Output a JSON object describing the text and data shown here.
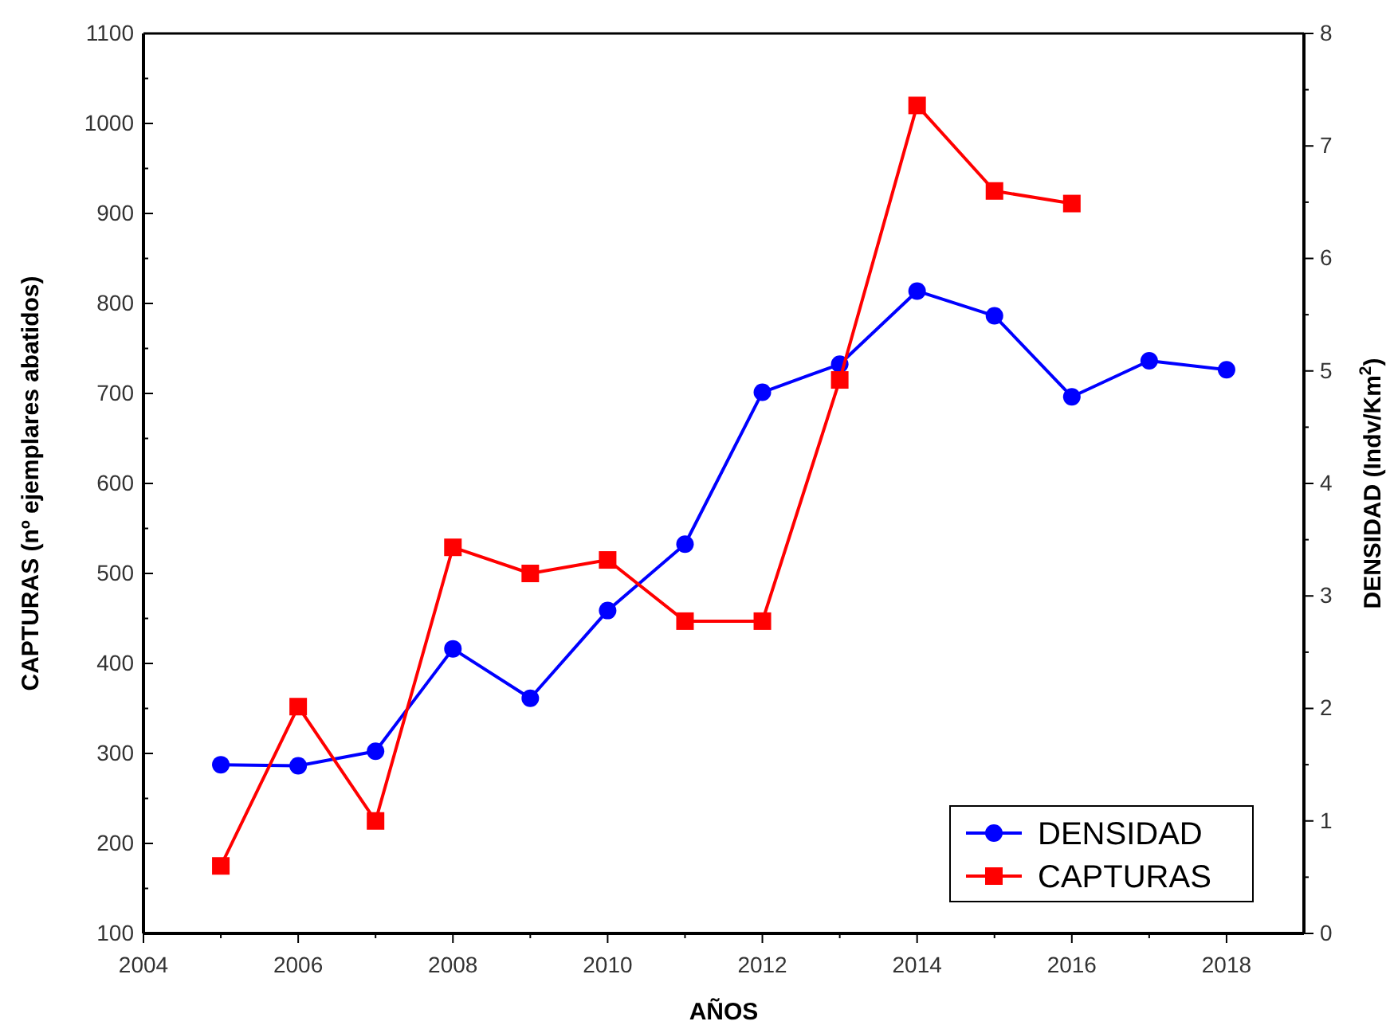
{
  "chart_data": {
    "type": "line",
    "xlabel": "AÑOS",
    "ylabel": "CAPTURAS (nº ejemplares abatidos)",
    "y2label": "DENSIDAD (Indv/Km$^{2}$)",
    "xlim": [
      2004,
      2019
    ],
    "xticks": [
      2004,
      {
        "value": 2005,
        "label": null
      },
      2006,
      {
        "value": 2007,
        "label": null
      },
      2008,
      {
        "value": 2009,
        "label": null
      },
      2010,
      {
        "value": 2011,
        "label": null
      },
      2012,
      {
        "value": 2013,
        "label": null
      },
      2014,
      {
        "value": 2015,
        "label": null
      },
      2016,
      {
        "value": 2017,
        "label": null
      },
      2018
    ],
    "ylim": [
      100,
      1100
    ],
    "yticks": [
      100,
      {
        "value": 150,
        "label": null
      },
      200,
      {
        "value": 250,
        "label": null
      },
      300,
      {
        "value": 350,
        "label": null
      },
      400,
      {
        "value": 450,
        "label": null
      },
      500,
      {
        "value": 550,
        "label": null
      },
      600,
      {
        "value": 650,
        "label": null
      },
      700,
      {
        "value": 750,
        "label": null
      },
      800,
      {
        "value": 850,
        "label": null
      },
      900,
      {
        "value": 950,
        "label": null
      },
      1000,
      {
        "value": 1050,
        "label": null
      },
      1100
    ],
    "y2lim": [
      0,
      8
    ],
    "y2ticks": [
      0,
      {
        "value": 0.5,
        "label": null
      },
      1,
      {
        "value": 1.5,
        "label": null
      },
      2,
      {
        "value": 2.5,
        "label": null
      },
      3,
      {
        "value": 3.5,
        "label": null
      },
      4,
      {
        "value": 4.5,
        "label": null
      },
      5,
      {
        "value": 5.5,
        "label": null
      },
      6,
      {
        "value": 6.5,
        "label": null
      },
      7,
      {
        "value": 7.5,
        "label": null
      },
      8
    ],
    "series": [
      {
        "name": "DENSIDAD",
        "color": "#0000ff",
        "axis": "y2",
        "marker": "circle",
        "x": [
          2005,
          2006,
          2007,
          2008,
          2009,
          2010,
          2011,
          2012,
          2013,
          2014,
          2015,
          2016,
          2017,
          2018
        ],
        "values": [
          1.5,
          1.49,
          1.62,
          2.53,
          2.09,
          2.87,
          3.46,
          4.81,
          5.06,
          5.71,
          5.49,
          4.77,
          5.09,
          5.01
        ]
      },
      {
        "name": "CAPTURAS",
        "color": "#ff0000",
        "marker": "square",
        "x": [
          2005,
          2006,
          2007,
          2008,
          2009,
          2010,
          2011,
          2012,
          2013,
          2014,
          2015,
          2016
        ],
        "values": [
          175,
          352,
          225,
          529,
          500,
          515,
          447,
          447,
          715,
          1020,
          925,
          911
        ]
      }
    ],
    "legend": "bottom right",
    "grid": false
  }
}
